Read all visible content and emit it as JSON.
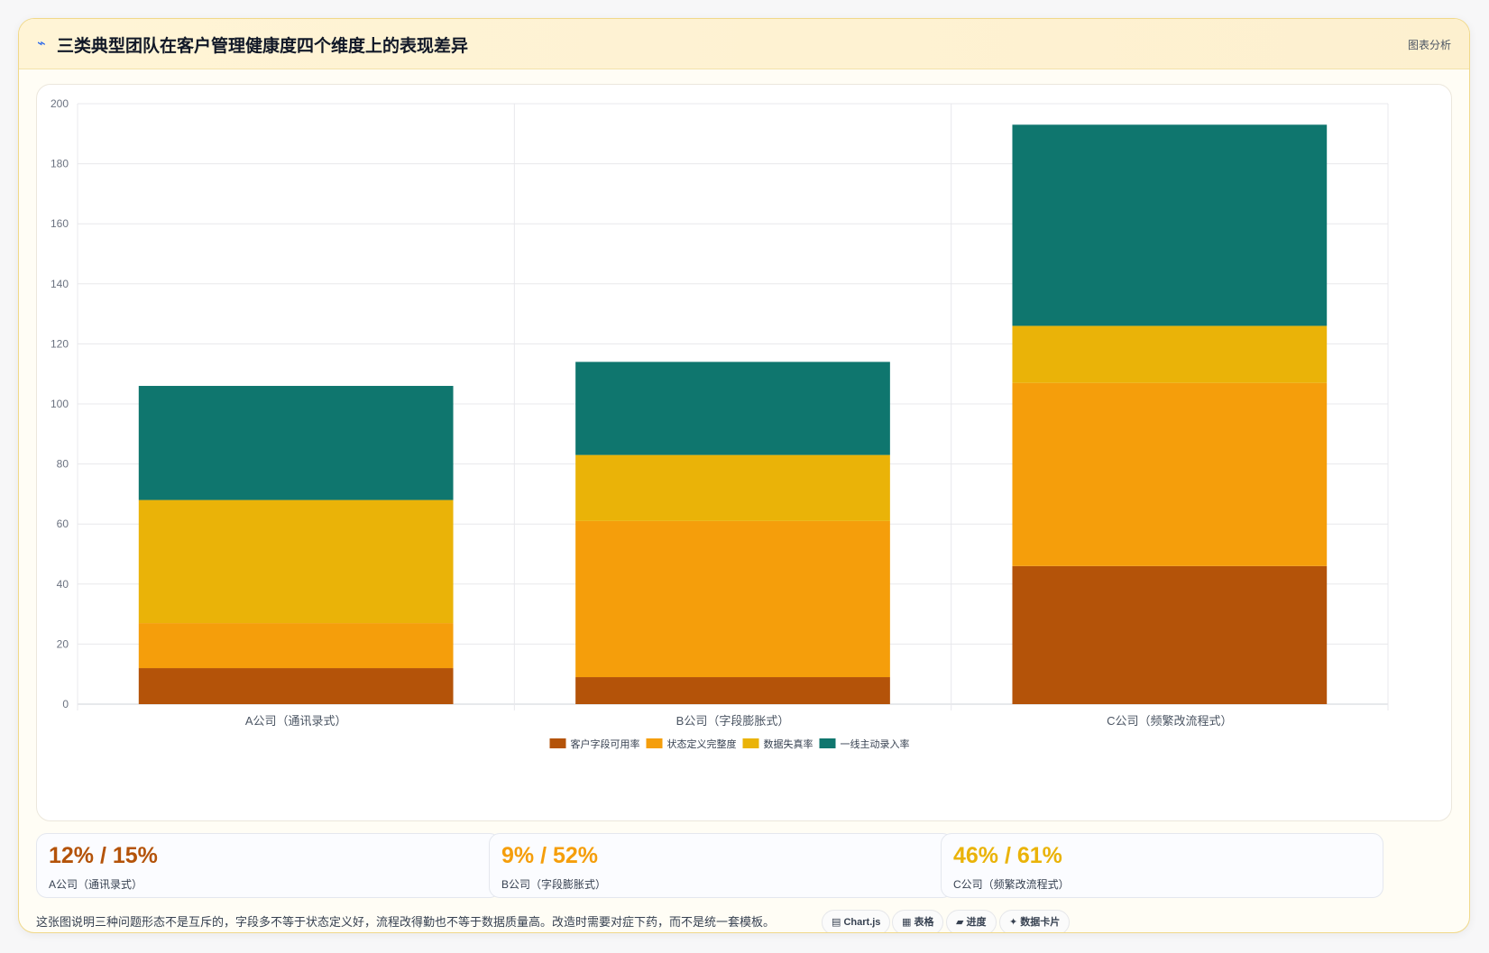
{
  "header": {
    "icon": "chart-icon",
    "title": "三类典型团队在客户管理健康度四个维度上的表现差异",
    "tag": "图表分析"
  },
  "chart_data": {
    "type": "bar",
    "stacked": true,
    "categories": [
      "A公司（通讯录式）",
      "B公司（字段膨胀式）",
      "C公司（频繁改流程式）"
    ],
    "series": [
      {
        "name": "客户字段可用率",
        "color": "#b45309",
        "values": [
          12,
          9,
          46
        ]
      },
      {
        "name": "状态定义完整度",
        "color": "#f59e0b",
        "values": [
          15,
          52,
          61
        ]
      },
      {
        "name": "数据失真率",
        "color": "#eab308",
        "values": [
          41,
          22,
          19
        ]
      },
      {
        "name": "一线主动录入率",
        "color": "#0f766e",
        "values": [
          38,
          31,
          67
        ]
      }
    ],
    "ylim": [
      0,
      200
    ],
    "yticks": [
      0,
      20,
      40,
      60,
      80,
      100,
      120,
      140,
      160,
      180,
      200
    ],
    "grid": true,
    "legend": "bottom"
  },
  "stats": [
    {
      "value": "12% / 15%",
      "label": "A公司（通讯录式）",
      "color": "#b45309"
    },
    {
      "value": "9% / 52%",
      "label": "B公司（字段膨胀式）",
      "color": "#f59e0b"
    },
    {
      "value": "46% / 61%",
      "label": "C公司（频繁改流程式）",
      "color": "#eab308"
    }
  ],
  "footer": {
    "note": "这张图说明三种问题形态不是互斥的，字段多不等于状态定义好，流程改得勤也不等于数据质量高。改造时需要对症下药，而不是统一套模板。",
    "chips": [
      {
        "icon": "chart-icon",
        "label": "Chart.js"
      },
      {
        "icon": "table-icon",
        "label": "表格"
      },
      {
        "icon": "progress-icon",
        "label": "进度"
      },
      {
        "icon": "sparkle-icon",
        "label": "数据卡片"
      }
    ]
  }
}
